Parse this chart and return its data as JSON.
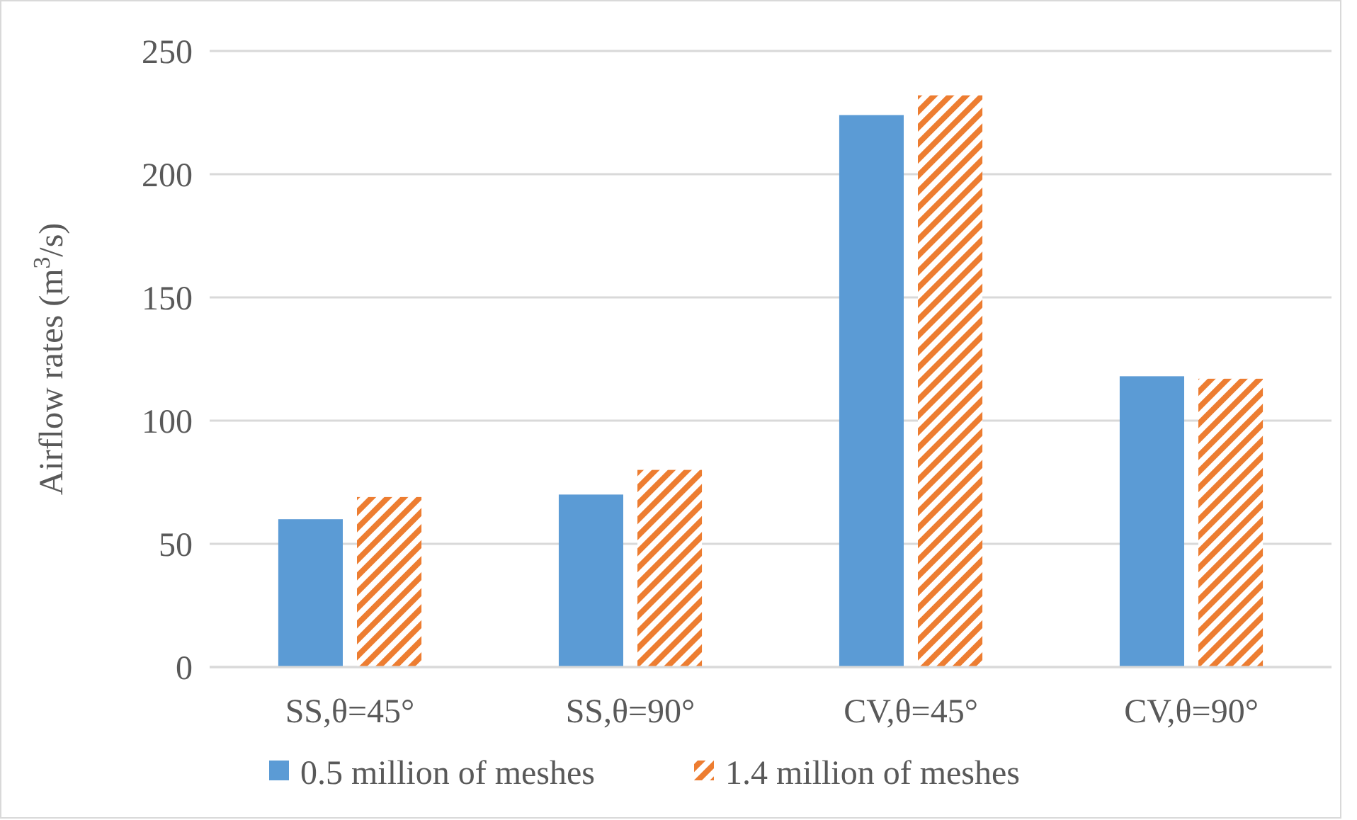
{
  "chart_data": {
    "type": "bar",
    "ylabel": "Airflow rates (m$^{3}$/s)",
    "categories": [
      "SS,θ=45°",
      "SS,θ=90°",
      "CV,θ=45°",
      "CV,θ=90°"
    ],
    "series": [
      {
        "name": "0.5 million of meshes",
        "color": "#5b9bd5",
        "values": [
          60,
          70,
          224,
          118
        ]
      },
      {
        "name": "1.4 million of meshes",
        "color": "#ed7d31",
        "values": [
          69,
          80,
          232,
          117
        ]
      }
    ],
    "ylim": [
      0,
      250
    ],
    "yticks": [
      0,
      50,
      100,
      150,
      200,
      250
    ],
    "grid": "y",
    "legend": "bottom"
  }
}
